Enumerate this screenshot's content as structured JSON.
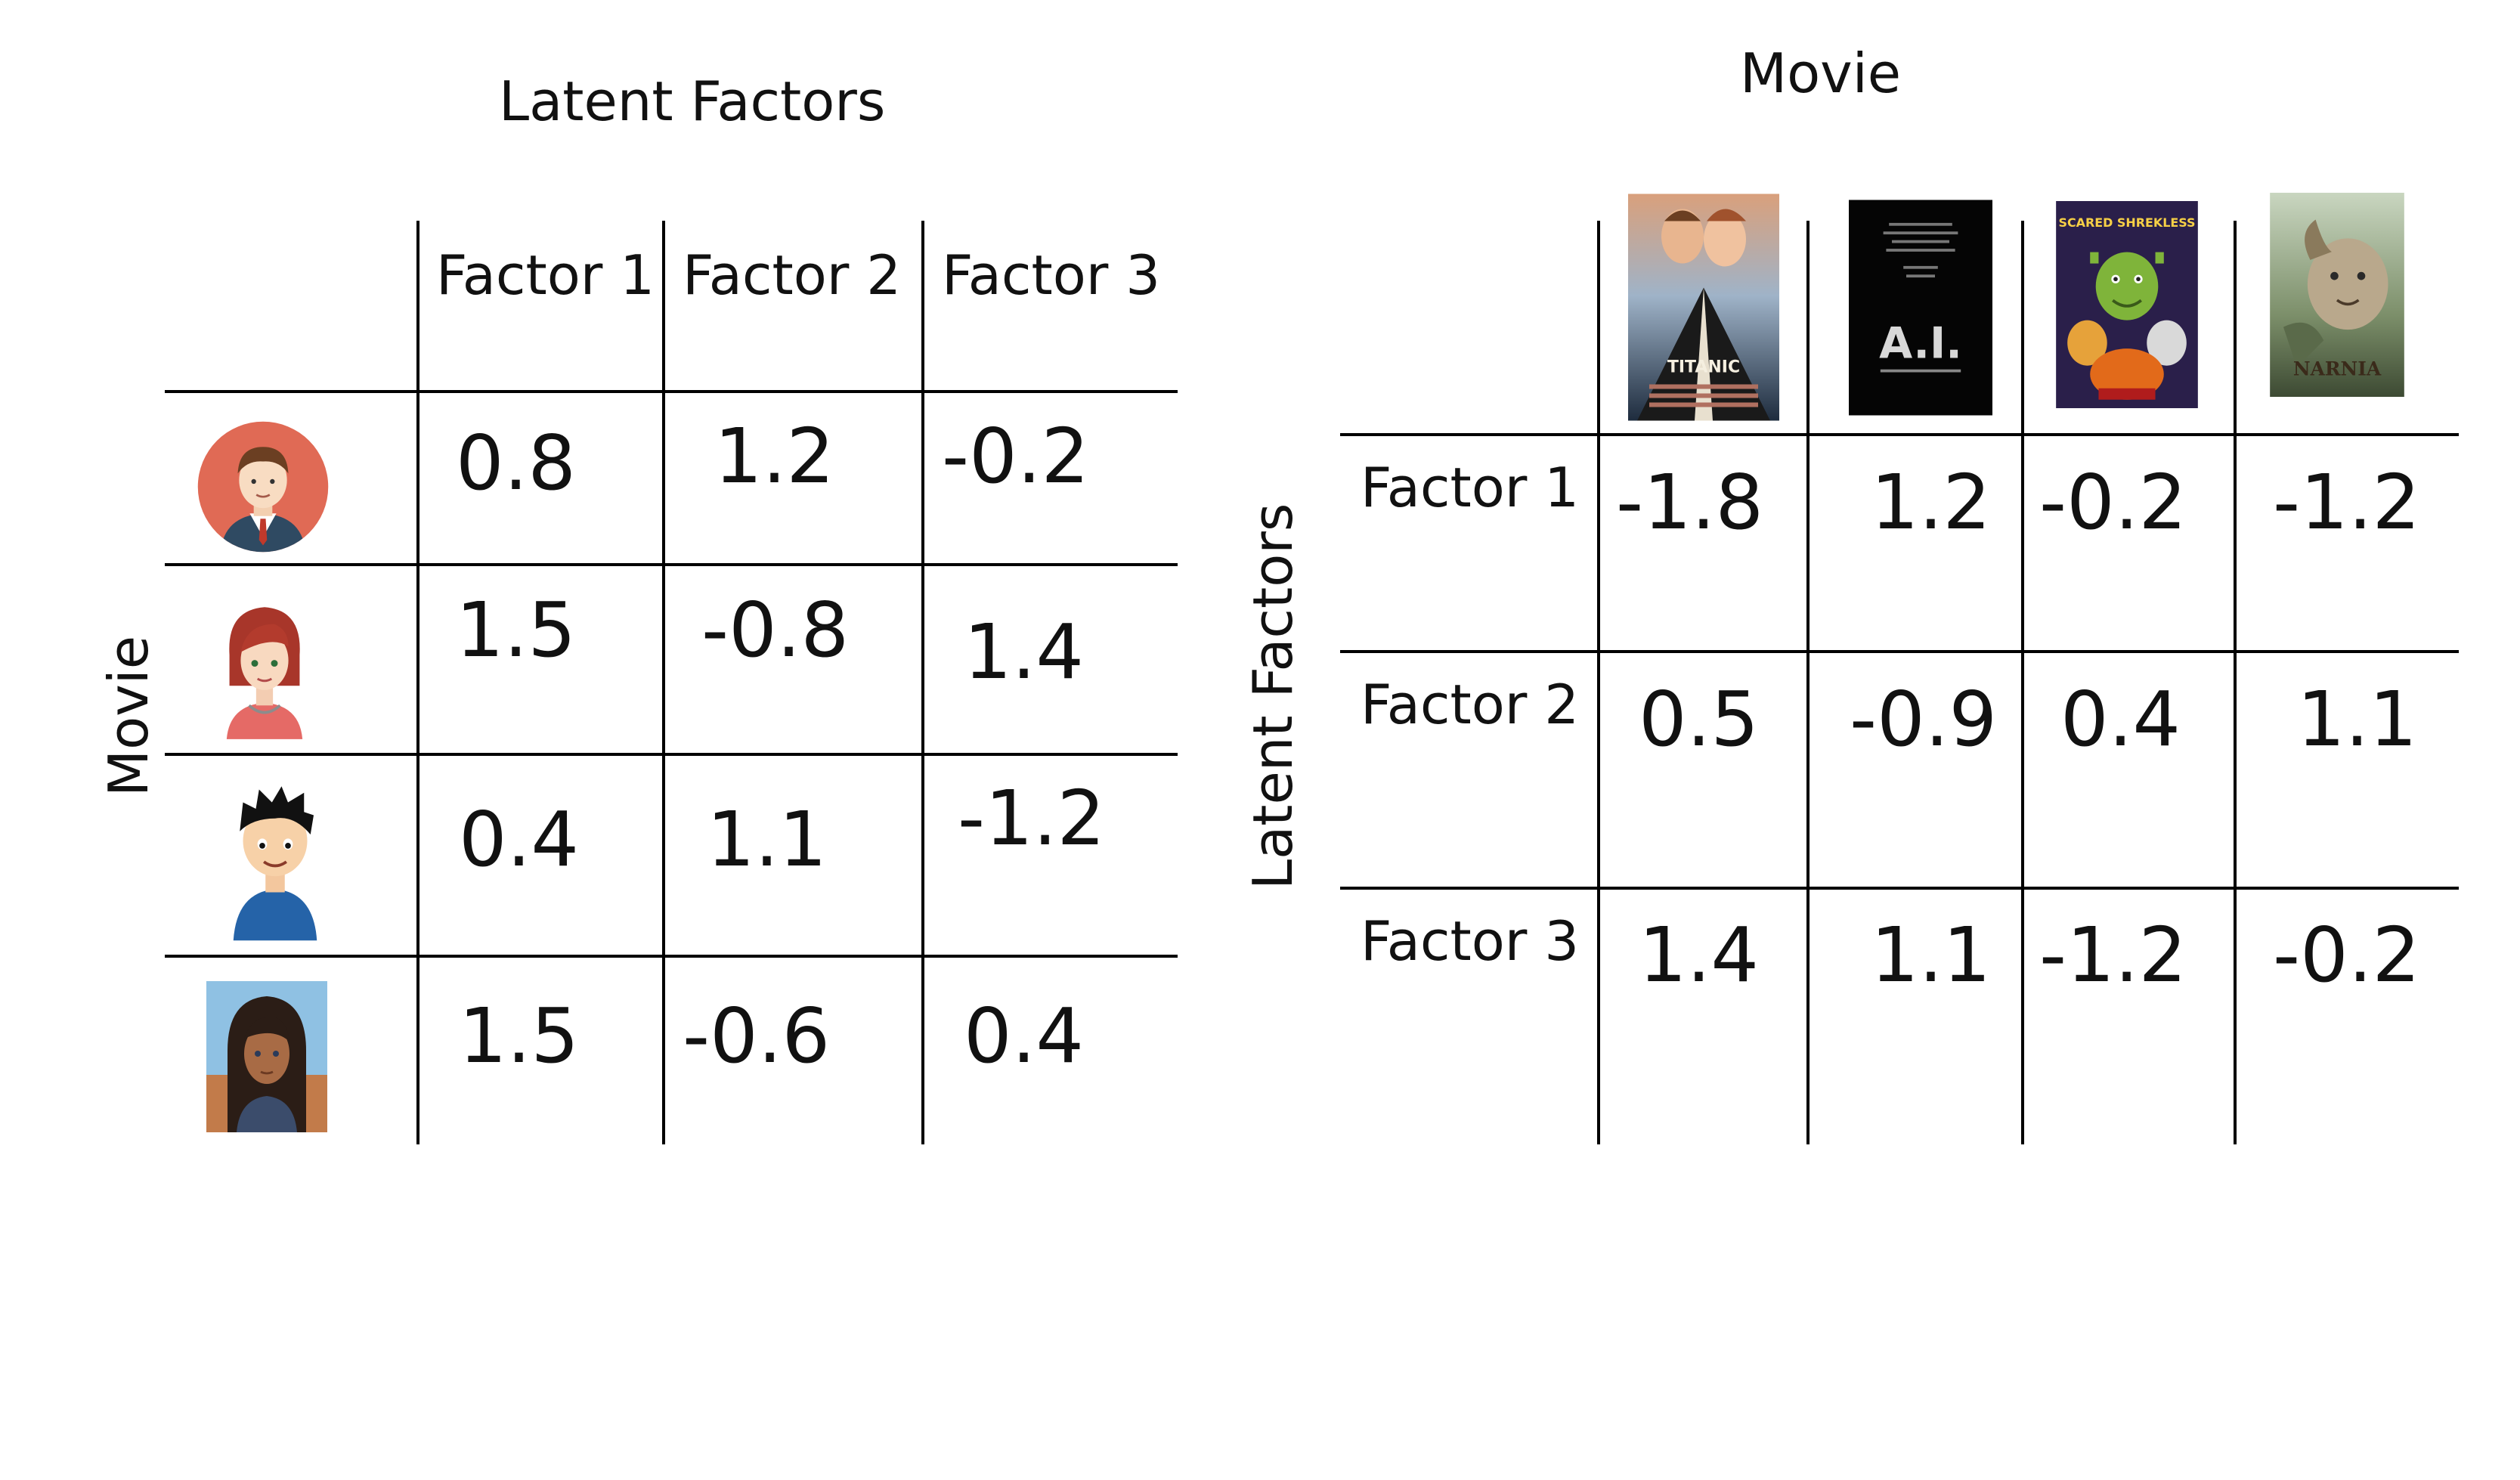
{
  "user_matrix": {
    "title": "Latent Factors",
    "side_label": "Movie",
    "columns": [
      "Factor 1",
      "Factor 2",
      "Factor 3"
    ],
    "rows": [
      {
        "avatar": "man-avatar-icon",
        "values": [
          "0.8",
          "1.2",
          "-0.2"
        ]
      },
      {
        "avatar": "woman-avatar-icon",
        "values": [
          "1.5",
          "-0.8",
          "1.4"
        ]
      },
      {
        "avatar": "boy-clipart-avatar-icon",
        "values": [
          "0.4",
          "1.1",
          "-1.2"
        ]
      },
      {
        "avatar": "cartoon-girl-avatar-icon",
        "values": [
          "1.5",
          "-0.6",
          "0.4"
        ]
      }
    ]
  },
  "movie_matrix": {
    "title": "Movie",
    "side_label": "Latent Factors",
    "posters": [
      {
        "name": "titanic-poster",
        "text": "TITANIC"
      },
      {
        "name": "ai-poster",
        "text": "A.I."
      },
      {
        "name": "scared-shrekless-poster",
        "text": "SCARED SHREKLESS"
      },
      {
        "name": "narnia-poster",
        "text": "NARNIA"
      }
    ],
    "rows": [
      {
        "label": "Factor 1",
        "values": [
          "-1.8",
          "1.2",
          "-0.2",
          "-1.2"
        ]
      },
      {
        "label": "Factor 2",
        "values": [
          "0.5",
          "-0.9",
          "0.4",
          "1.1"
        ]
      },
      {
        "label": "Factor 3",
        "values": [
          "1.4",
          "1.1",
          "-1.2",
          "-0.2"
        ]
      }
    ]
  }
}
